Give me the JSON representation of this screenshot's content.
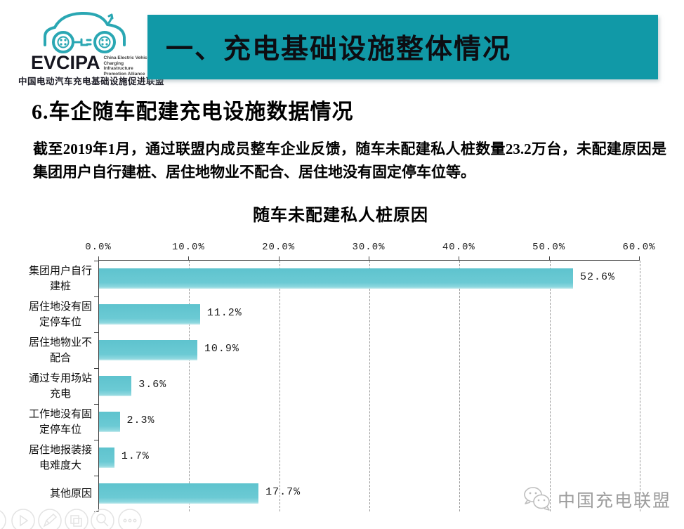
{
  "logo": {
    "acronym": "EVCIPA",
    "subtitle_lines": [
      "China Electric Vehicle",
      "Charging Infrastructure",
      "Promotion Alliance"
    ],
    "chinese_name": "中国电动汽车充电基础设施促进联盟",
    "brand_color": "#2aa7b3"
  },
  "banner": {
    "title": "一、充电基础设施整体情况",
    "bg_color": "#1199a7"
  },
  "section": {
    "heading": "6.车企随车配建充电设施数据情况"
  },
  "paragraph": {
    "text": "截至2019年1月，通过联盟内成员整车企业反馈，随车未配建私人桩数量23.2万台，未配建原因是集团用户自行建桩、居住地物业不配合、居住地没有固定停车位等。"
  },
  "chart_data": {
    "type": "bar",
    "orientation": "horizontal",
    "title": "随车未配建私人桩原因",
    "categories": [
      "集团用户自行\n建桩",
      "居住地没有固\n定停车位",
      "居住地物业不\n配合",
      "通过专用场站\n充电",
      "工作地没有固\n定停车位",
      "居住地报装接\n电难度大",
      "其他原因"
    ],
    "values": [
      52.6,
      11.2,
      10.9,
      3.6,
      2.3,
      1.7,
      17.7
    ],
    "value_labels": [
      "52.6%",
      "11.2%",
      "10.9%",
      "3.6%",
      "2.3%",
      "1.7%",
      "17.7%"
    ],
    "x_ticks": [
      "0.0%",
      "10.0%",
      "20.0%",
      "30.0%",
      "40.0%",
      "50.0%",
      "60.0%"
    ],
    "xlim": [
      0,
      60
    ],
    "x_tick_step": 10,
    "bar_color": "#68c8d2",
    "grid": "vertical dashed at each 10% tick",
    "axis_position": "top",
    "legend": "none"
  },
  "watermark": {
    "text": "中国充电联盟",
    "icon": "wechat-icon"
  },
  "toolbar": {
    "icons": [
      "circle-icon",
      "play-icon",
      "pencil-icon",
      "slides-icon",
      "magnifier-icon",
      "ellipsis-icon"
    ]
  }
}
